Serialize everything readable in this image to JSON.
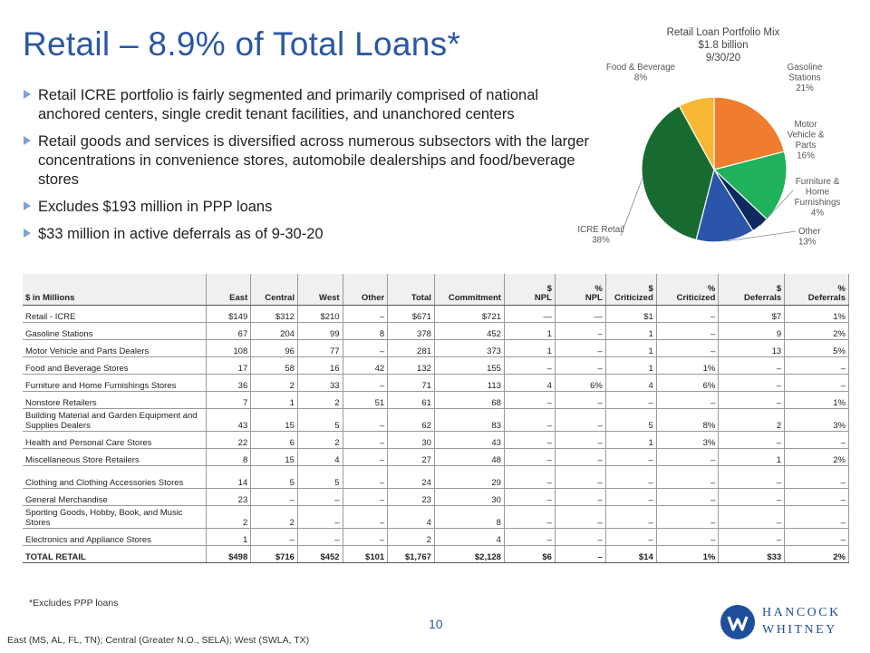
{
  "title": "Retail – 8.9% of Total Loans*",
  "bullets": [
    "Retail ICRE portfolio is fairly segmented and primarily comprised of national anchored centers, single credit tenant facilities, and unanchored centers",
    "Retail goods and services is diversified across numerous subsectors with the larger concentrations in convenience stores, automobile dealerships and food/beverage stores",
    "Excludes $193 million in PPP loans",
    "$33 million in active deferrals as of 9-30-20"
  ],
  "chart_data": {
    "type": "pie",
    "title": [
      "Retail Loan Portfolio Mix",
      "$1.8 billion",
      "9/30/20"
    ],
    "slices": [
      {
        "label": [
          "Gasoline",
          "Stations",
          "21%"
        ],
        "value": 21,
        "color": "#f07d2e"
      },
      {
        "label": [
          "Motor",
          "Vehicle &",
          "Parts",
          "16%"
        ],
        "value": 16,
        "color": "#1fb25a"
      },
      {
        "label": [
          "Furniture &",
          "Home",
          "Furnishings",
          "4%"
        ],
        "value": 4,
        "color": "#0d2a5e"
      },
      {
        "label": [
          "Other",
          "13%"
        ],
        "value": 13,
        "color": "#2a55a8"
      },
      {
        "label": [
          "ICRE Retail",
          "38%"
        ],
        "value": 38,
        "color": "#176b30"
      },
      {
        "label": [
          "Food & Beverage",
          "8%"
        ],
        "value": 8,
        "color": "#f7b733"
      }
    ]
  },
  "table": {
    "headers": [
      "$ in Millions",
      "East",
      "Central",
      "West",
      "Other",
      "Total",
      "Commitment",
      "$\nNPL",
      "%\nNPL",
      "$\nCriticized",
      "%\nCriticized",
      "$\nDeferrals",
      "%\nDeferrals"
    ],
    "rows": [
      [
        "Retail - ICRE",
        "$149",
        "$312",
        "$210",
        "–",
        "$671",
        "$721",
        "—",
        "—",
        "$1",
        "–",
        "$7",
        "1%"
      ],
      [
        "Gasoline Stations",
        "67",
        "204",
        "99",
        "8",
        "378",
        "452",
        "1",
        "–",
        "1",
        "–",
        "9",
        "2%"
      ],
      [
        "Motor Vehicle and Parts Dealers",
        "108",
        "96",
        "77",
        "–",
        "281",
        "373",
        "1",
        "–",
        "1",
        "–",
        "13",
        "5%"
      ],
      [
        "Food and Beverage Stores",
        "17",
        "58",
        "16",
        "42",
        "132",
        "155",
        "–",
        "–",
        "1",
        "1%",
        "–",
        "–"
      ],
      [
        "Furniture and Home Furnishings Stores",
        "36",
        "2",
        "33",
        "–",
        "71",
        "113",
        "4",
        "6%",
        "4",
        "6%",
        "–",
        "–"
      ],
      [
        "Nonstore Retailers",
        "7",
        "1",
        "2",
        "51",
        "61",
        "68",
        "–",
        "–",
        "–",
        "–",
        "–",
        "1%"
      ],
      [
        "Building Material and Garden Equipment and Supplies Dealers",
        "43",
        "15",
        "5",
        "–",
        "62",
        "83",
        "–",
        "–",
        "5",
        "8%",
        "2",
        "3%"
      ],
      [
        "Health and Personal Care Stores",
        "22",
        "6",
        "2",
        "–",
        "30",
        "43",
        "–",
        "–",
        "1",
        "3%",
        "–",
        "–"
      ],
      [
        "Miscellaneous Store Retailers",
        "8",
        "15",
        "4",
        "–",
        "27",
        "48",
        "–",
        "–",
        "–",
        "–",
        "1",
        "2%"
      ],
      [
        "Clothing and Clothing Accessories Stores",
        "14",
        "5",
        "5",
        "–",
        "24",
        "29",
        "–",
        "–",
        "–",
        "–",
        "–",
        "–"
      ],
      [
        "General Merchandise",
        "23",
        "–",
        "–",
        "–",
        "23",
        "30",
        "–",
        "–",
        "–",
        "–",
        "–",
        "–"
      ],
      [
        "Sporting Goods, Hobby, Book, and Music Stores",
        "2",
        "2",
        "–",
        "–",
        "4",
        "8",
        "–",
        "–",
        "–",
        "–",
        "–",
        "–"
      ],
      [
        "Electronics and Appliance Stores",
        "1",
        "–",
        "–",
        "–",
        "2",
        "4",
        "–",
        "–",
        "–",
        "–",
        "–",
        "–"
      ]
    ],
    "tall_rows": [
      6,
      9,
      11
    ],
    "total": [
      "TOTAL RETAIL",
      "$498",
      "$716",
      "$452",
      "$101",
      "$1,767",
      "$2,128",
      "$6",
      "–",
      "$14",
      "1%",
      "$33",
      "2%"
    ]
  },
  "footnote": "*Excludes PPP loans",
  "page_number": "10",
  "regions_note": "East (MS, AL, FL, TN); Central (Greater N.O., SELA); West (SWLA, TX)",
  "logo": {
    "line1": "HANCOCK",
    "line2": "WHITNEY",
    "color": "#1f4e9c"
  }
}
